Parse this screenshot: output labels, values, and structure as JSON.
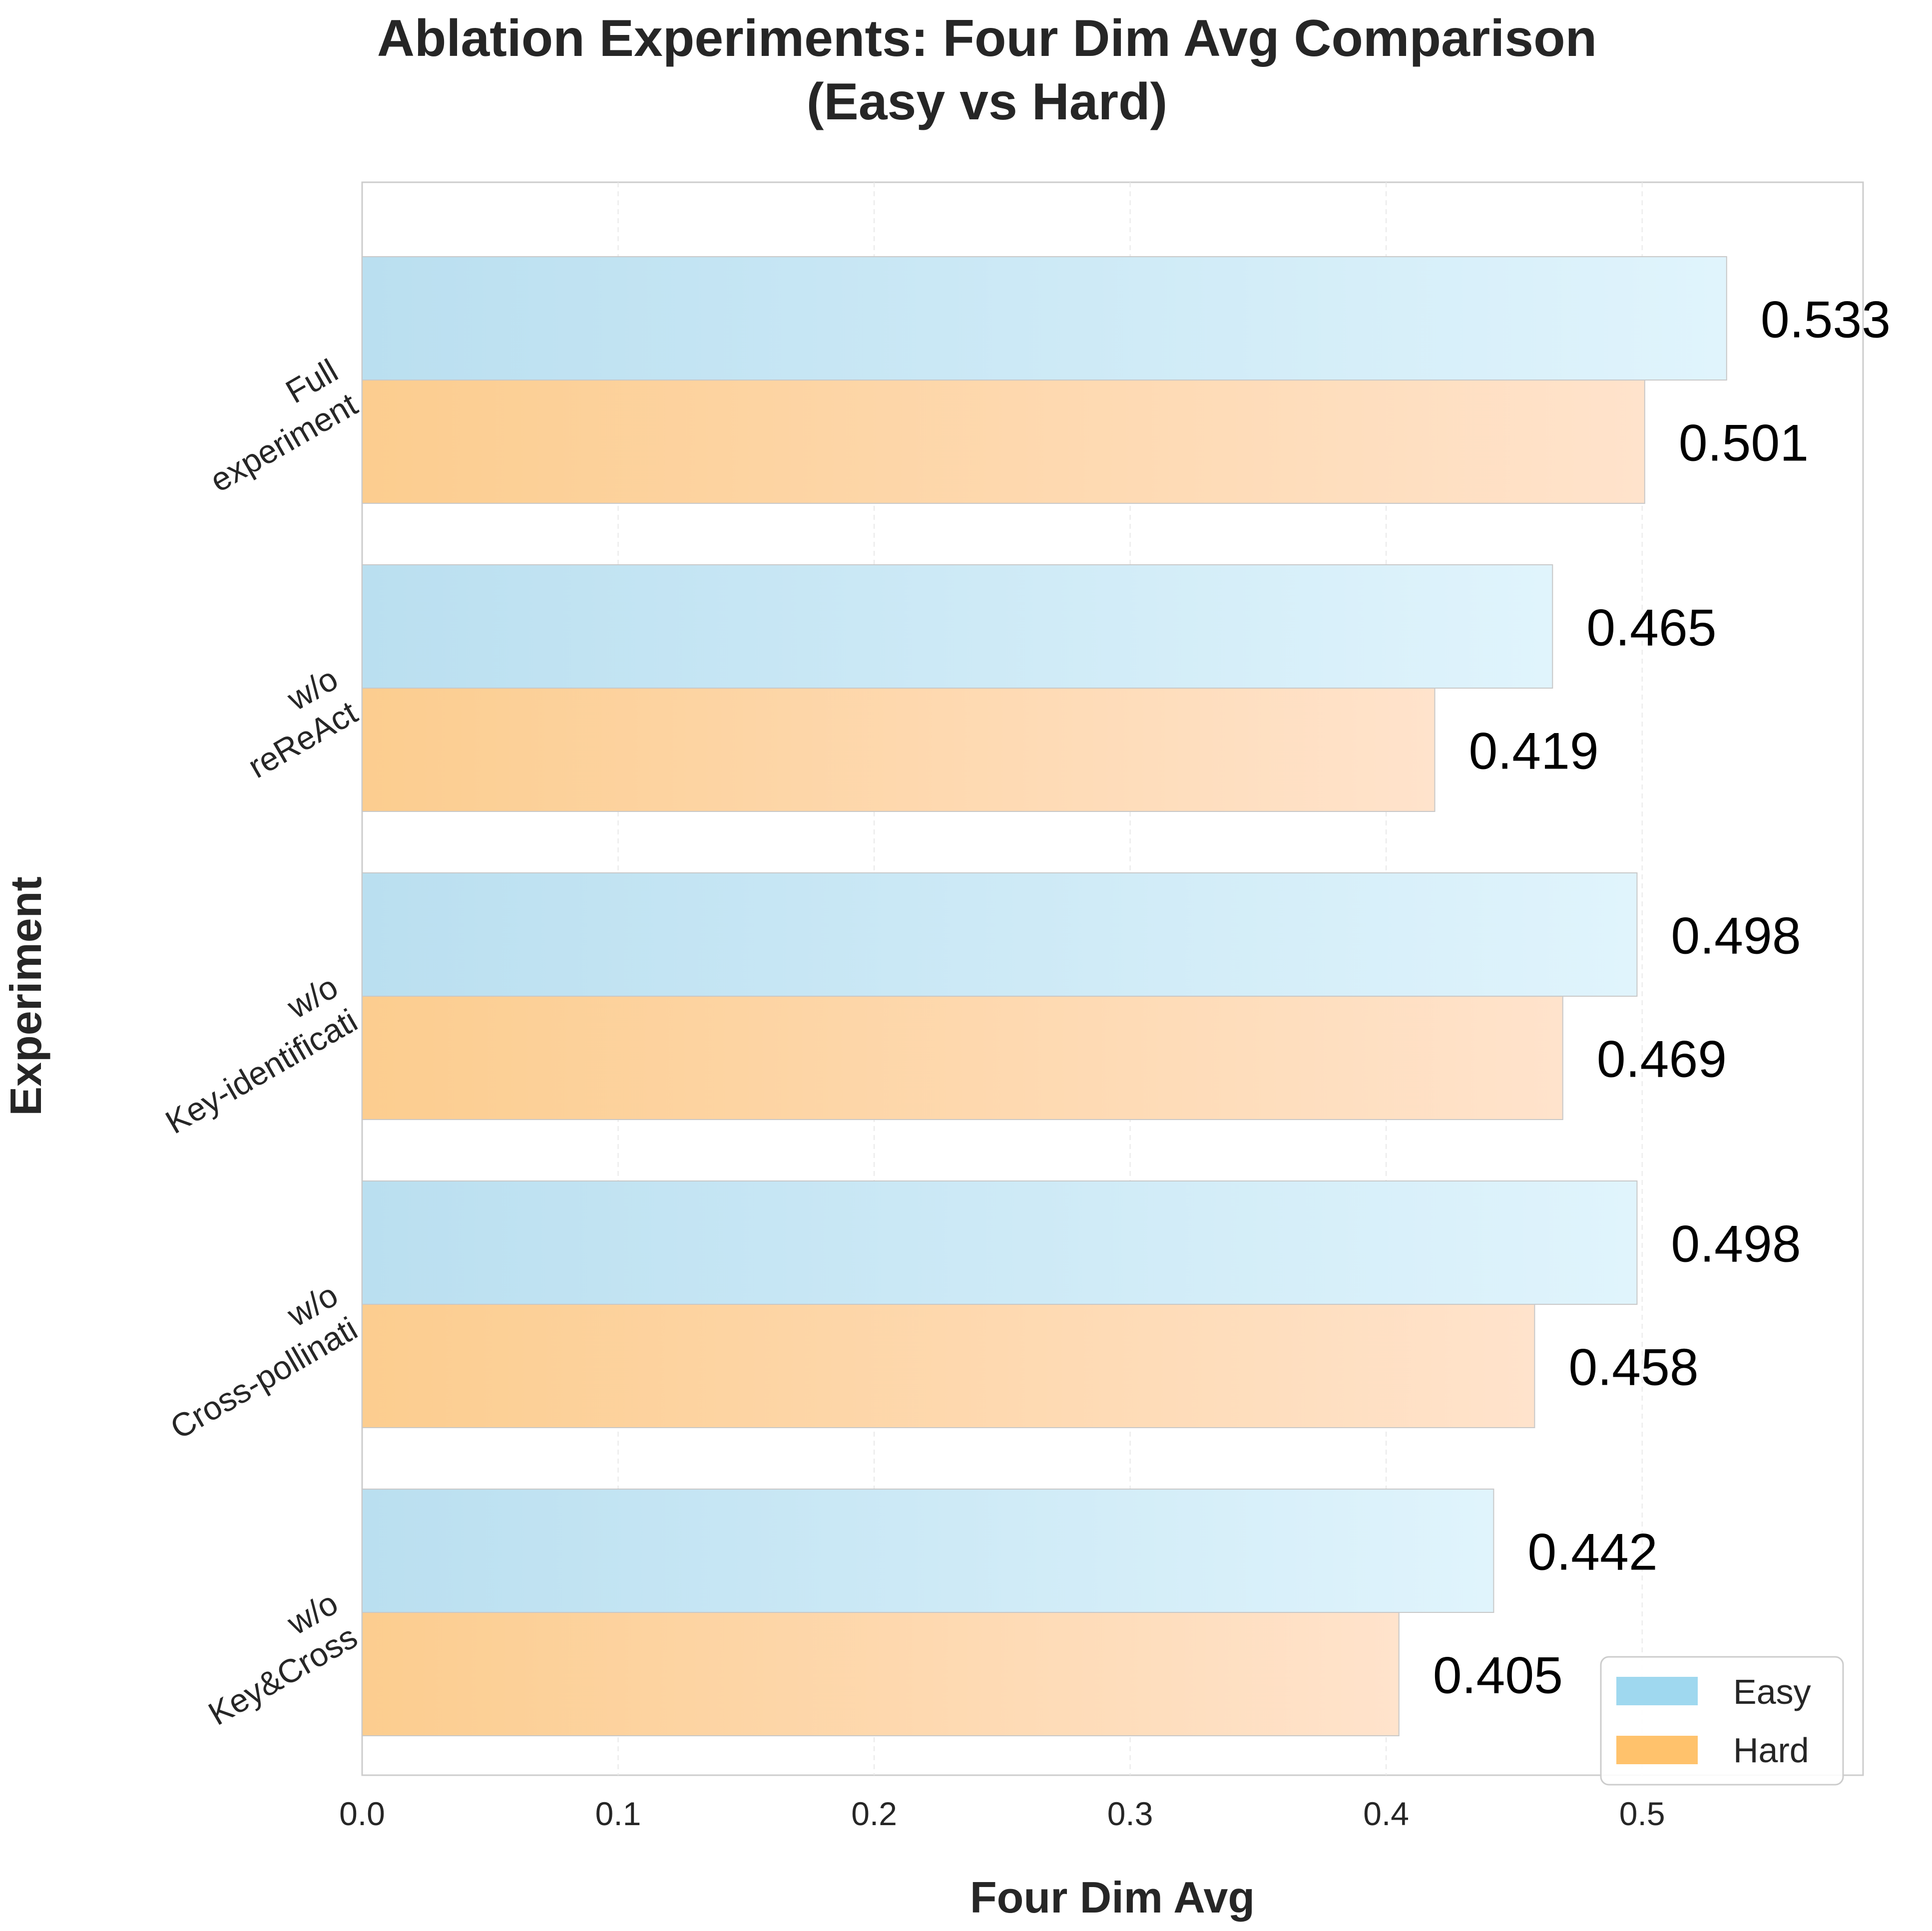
{
  "chart_data": {
    "type": "bar",
    "orientation": "horizontal",
    "title": "Ablation Experiments: Four Dim Avg Comparison\n(Easy vs Hard)",
    "xlabel": "Four Dim Avg",
    "ylabel": "Experiment",
    "xlim": [
      0,
      0.5863
    ],
    "xticks": [
      "0.0",
      "0.1",
      "0.2",
      "0.3",
      "0.4",
      "0.5"
    ],
    "grid": true,
    "legend_position": "lower-right",
    "categories": [
      "Full\nexperiment",
      "w/o\nreReAct",
      "w/o\nKey-identificati",
      "w/o\nCross-pollinati",
      "w/o\nKey&Cross"
    ],
    "series": [
      {
        "name": "Easy",
        "color": "#87CEEB",
        "values": [
          0.533,
          0.465,
          0.498,
          0.498,
          0.442
        ],
        "labels": [
          "0.533",
          "0.465",
          "0.498",
          "0.498",
          "0.442"
        ]
      },
      {
        "name": "Hard",
        "color": "#FFB347",
        "values": [
          0.501,
          0.419,
          0.469,
          0.458,
          0.405
        ],
        "labels": [
          "0.501",
          "0.419",
          "0.469",
          "0.458",
          "0.405"
        ]
      }
    ]
  }
}
